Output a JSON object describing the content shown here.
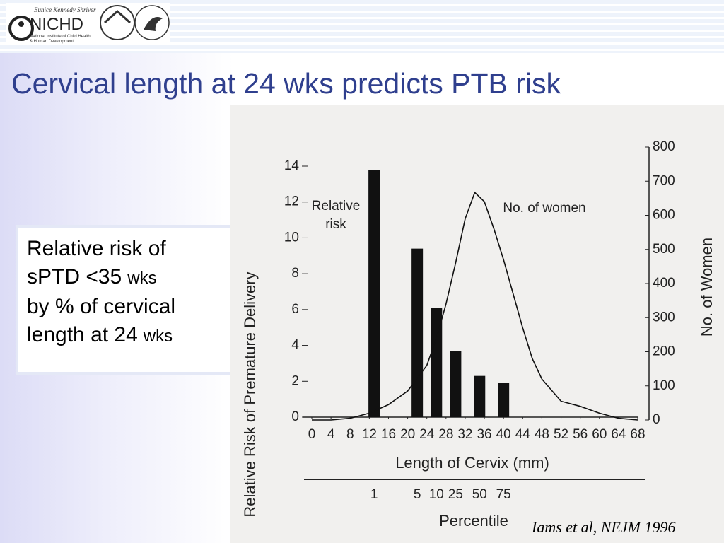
{
  "logo": {
    "tagline": "Eunice Kennedy Shriver",
    "name": "NICHD",
    "institute": [
      "National Institute of Child Health",
      "& Human Development"
    ]
  },
  "slide_title": "Cervical length at 24 wks predicts PTB risk",
  "textbox": [
    {
      "text": "Relative risk of"
    },
    {
      "text": "sPTD <35",
      "small": "wks"
    },
    {
      "text": "by % of cervical"
    },
    {
      "text": "length at 24",
      "small": "wks"
    }
  ],
  "citation": "Iams et al, NEJM 1996",
  "chart_data": {
    "type": "combo",
    "xlabel": "Length of Cervix (mm)",
    "ylabel": "Relative Risk of Premature Delivery",
    "y2label": "No. of Women",
    "percentile_label": "Percentile",
    "xlim": [
      0,
      68
    ],
    "xticks": [
      0,
      4,
      8,
      12,
      16,
      20,
      24,
      28,
      32,
      36,
      40,
      44,
      48,
      52,
      56,
      60,
      64,
      68
    ],
    "ylim": [
      0,
      14
    ],
    "yticks": [
      0,
      2,
      4,
      6,
      8,
      10,
      12,
      14
    ],
    "y2lim": [
      0,
      800
    ],
    "y2ticks": [
      0,
      100,
      200,
      300,
      400,
      500,
      600,
      700,
      800
    ],
    "series": [
      {
        "name": "Relative risk",
        "type": "bar",
        "color": "#111111",
        "x": [
          13,
          22,
          26,
          30,
          35,
          40
        ],
        "values": [
          13.8,
          9.4,
          6.1,
          3.7,
          2.3,
          1.9
        ],
        "percentiles": [
          1,
          5,
          10,
          25,
          50,
          75
        ]
      },
      {
        "name": "No. of women",
        "type": "line",
        "axis": "y2",
        "color": "#111111",
        "x": [
          0,
          4,
          8,
          12,
          16,
          20,
          24,
          26,
          28,
          30,
          32,
          34,
          36,
          38,
          40,
          42,
          44,
          46,
          48,
          52,
          56,
          60,
          64,
          68
        ],
        "values": [
          0,
          0,
          5,
          20,
          45,
          85,
          160,
          240,
          340,
          460,
          590,
          667,
          640,
          560,
          470,
          370,
          270,
          180,
          120,
          55,
          40,
          20,
          5,
          0
        ]
      }
    ],
    "annotations": [
      "Relative",
      "risk"
    ]
  }
}
